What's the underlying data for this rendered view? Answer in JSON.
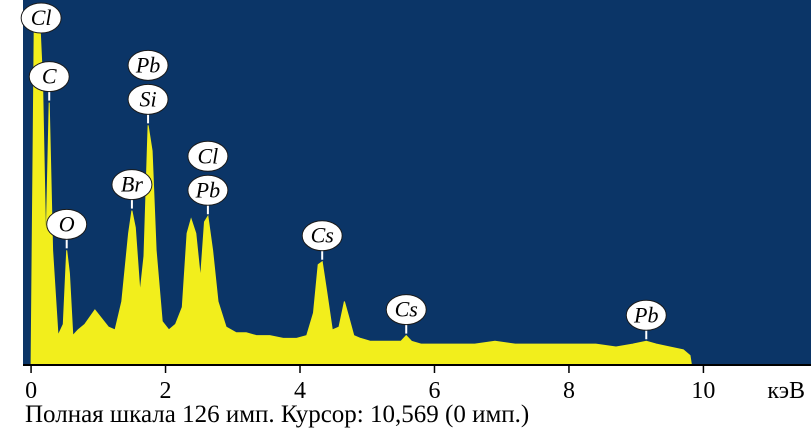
{
  "chart_data": {
    "type": "area",
    "xlabel": "",
    "ylabel": "",
    "x_unit": "кэВ",
    "xlim": [
      -0.12,
      11.6
    ],
    "ylim": [
      0,
      126
    ],
    "x_ticks": [
      0,
      2,
      4,
      6,
      8,
      10
    ],
    "colors": {
      "background": "#0b3567",
      "spectrum": "#f2ee1c",
      "axis": "#000000"
    },
    "spectrum": [
      [
        0.0,
        0
      ],
      [
        0.05,
        125
      ],
      [
        0.12,
        126
      ],
      [
        0.17,
        100
      ],
      [
        0.22,
        40
      ],
      [
        0.27,
        92
      ],
      [
        0.32,
        40
      ],
      [
        0.4,
        10
      ],
      [
        0.48,
        14
      ],
      [
        0.53,
        40
      ],
      [
        0.57,
        32
      ],
      [
        0.62,
        10
      ],
      [
        0.7,
        12
      ],
      [
        0.8,
        14
      ],
      [
        0.95,
        19
      ],
      [
        1.05,
        16
      ],
      [
        1.15,
        13
      ],
      [
        1.25,
        12
      ],
      [
        1.35,
        22
      ],
      [
        1.45,
        46
      ],
      [
        1.5,
        54
      ],
      [
        1.55,
        48
      ],
      [
        1.62,
        25
      ],
      [
        1.68,
        38
      ],
      [
        1.74,
        84
      ],
      [
        1.8,
        75
      ],
      [
        1.86,
        40
      ],
      [
        1.95,
        15
      ],
      [
        2.05,
        12
      ],
      [
        2.15,
        14
      ],
      [
        2.25,
        20
      ],
      [
        2.32,
        46
      ],
      [
        2.38,
        51
      ],
      [
        2.45,
        46
      ],
      [
        2.52,
        30
      ],
      [
        2.58,
        50
      ],
      [
        2.63,
        52
      ],
      [
        2.7,
        40
      ],
      [
        2.78,
        22
      ],
      [
        2.9,
        13
      ],
      [
        3.05,
        11
      ],
      [
        3.2,
        11
      ],
      [
        3.35,
        10
      ],
      [
        3.55,
        10
      ],
      [
        3.75,
        9
      ],
      [
        3.95,
        9
      ],
      [
        4.1,
        10
      ],
      [
        4.2,
        18
      ],
      [
        4.27,
        35
      ],
      [
        4.33,
        36
      ],
      [
        4.4,
        25
      ],
      [
        4.48,
        12
      ],
      [
        4.58,
        13
      ],
      [
        4.66,
        22
      ],
      [
        4.72,
        17
      ],
      [
        4.8,
        10
      ],
      [
        4.9,
        9
      ],
      [
        5.05,
        8
      ],
      [
        5.2,
        8
      ],
      [
        5.35,
        8
      ],
      [
        5.5,
        8
      ],
      [
        5.58,
        10
      ],
      [
        5.66,
        8
      ],
      [
        5.8,
        7
      ],
      [
        6.0,
        7
      ],
      [
        6.3,
        7
      ],
      [
        6.6,
        7
      ],
      [
        6.9,
        8
      ],
      [
        7.2,
        7
      ],
      [
        7.5,
        7
      ],
      [
        7.8,
        7
      ],
      [
        8.1,
        7
      ],
      [
        8.4,
        7
      ],
      [
        8.7,
        6
      ],
      [
        8.95,
        7
      ],
      [
        9.15,
        8
      ],
      [
        9.3,
        7
      ],
      [
        9.5,
        6
      ],
      [
        9.7,
        5
      ],
      [
        9.8,
        3
      ],
      [
        9.82,
        0
      ]
    ],
    "peak_labels": [
      {
        "element": "Cl",
        "x": 0.15,
        "y": 126,
        "stack": 0
      },
      {
        "element": "C",
        "x": 0.27,
        "y": 92,
        "stack": 0
      },
      {
        "element": "O",
        "x": 0.53,
        "y": 40,
        "stack": 0
      },
      {
        "element": "Br",
        "x": 1.5,
        "y": 54,
        "stack": 0
      },
      {
        "element": "Si",
        "x": 1.74,
        "y": 84,
        "stack": 0
      },
      {
        "element": "Pb",
        "x": 1.74,
        "y": 84,
        "stack": 1
      },
      {
        "element": "Pb",
        "x": 2.63,
        "y": 52,
        "stack": 0
      },
      {
        "element": "Cl",
        "x": 2.63,
        "y": 52,
        "stack": 1
      },
      {
        "element": "Cs",
        "x": 4.33,
        "y": 36,
        "stack": 0
      },
      {
        "element": "Cs",
        "x": 5.58,
        "y": 10,
        "stack": 0
      },
      {
        "element": "Pb",
        "x": 9.15,
        "y": 8,
        "stack": 0
      }
    ]
  },
  "footer": {
    "text": "Полная шкала 126 имп. Курсор: 10,569 (0 имп.)"
  }
}
